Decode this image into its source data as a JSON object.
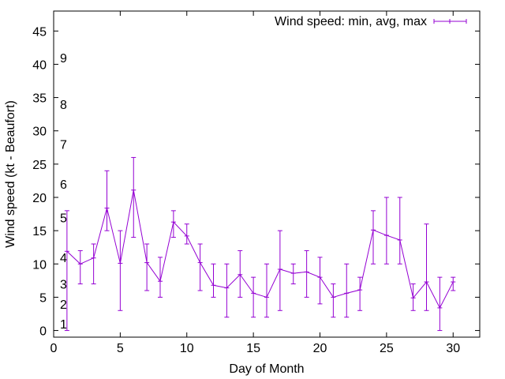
{
  "chart_data": {
    "type": "line",
    "xlabel": "Day of Month",
    "ylabel": "Wind speed (kt - Beaufort)",
    "xlim": [
      0,
      32
    ],
    "ylim": [
      -1,
      48
    ],
    "xticks": [
      0,
      5,
      10,
      15,
      20,
      25,
      30
    ],
    "yticks": [
      0,
      5,
      10,
      15,
      20,
      25,
      30,
      35,
      40,
      45
    ],
    "grid": false,
    "legend_position": "top-right",
    "series": [
      {
        "name": "Wind speed: min, avg, max",
        "color": "#9400d3",
        "style": "line-with-error-bars",
        "points": [
          {
            "x": 1,
            "y": 11.9,
            "min": 0,
            "max": 18
          },
          {
            "x": 2,
            "y": 10.0,
            "min": 7,
            "max": 12
          },
          {
            "x": 3,
            "y": 10.9,
            "min": 7,
            "max": 13
          },
          {
            "x": 4,
            "y": 18.4,
            "min": 15,
            "max": 24
          },
          {
            "x": 5,
            "y": 10.1,
            "min": 3,
            "max": 15
          },
          {
            "x": 6,
            "y": 21.1,
            "min": 14,
            "max": 26
          },
          {
            "x": 7,
            "y": 10.2,
            "min": 6,
            "max": 13
          },
          {
            "x": 8,
            "y": 7.4,
            "min": 5,
            "max": 11
          },
          {
            "x": 9,
            "y": 16.3,
            "min": 14,
            "max": 18
          },
          {
            "x": 10,
            "y": 14.2,
            "min": 13,
            "max": 16
          },
          {
            "x": 11,
            "y": 10.2,
            "min": 6,
            "max": 13
          },
          {
            "x": 12,
            "y": 6.8,
            "min": 5,
            "max": 10
          },
          {
            "x": 13,
            "y": 6.4,
            "min": 2,
            "max": 10
          },
          {
            "x": 14,
            "y": 8.4,
            "min": 5,
            "max": 12
          },
          {
            "x": 15,
            "y": 5.6,
            "min": 2,
            "max": 8
          },
          {
            "x": 16,
            "y": 5.0,
            "min": 2,
            "max": 10
          },
          {
            "x": 17,
            "y": 9.2,
            "min": 3,
            "max": 15
          },
          {
            "x": 18,
            "y": 8.6,
            "min": 7,
            "max": 10
          },
          {
            "x": 19,
            "y": 8.8,
            "min": 5,
            "max": 12
          },
          {
            "x": 20,
            "y": 8.0,
            "min": 4,
            "max": 11
          },
          {
            "x": 21,
            "y": 5.0,
            "min": 2,
            "max": 7
          },
          {
            "x": 22,
            "y": 5.6,
            "min": 2,
            "max": 10
          },
          {
            "x": 23,
            "y": 6.1,
            "min": 3,
            "max": 8
          },
          {
            "x": 24,
            "y": 15.1,
            "min": 10,
            "max": 18
          },
          {
            "x": 25,
            "y": 14.3,
            "min": 10,
            "max": 20
          },
          {
            "x": 26,
            "y": 13.6,
            "min": 10,
            "max": 20
          },
          {
            "x": 27,
            "y": 4.9,
            "min": 3,
            "max": 7
          },
          {
            "x": 28,
            "y": 7.3,
            "min": 3,
            "max": 16
          },
          {
            "x": 29,
            "y": 3.4,
            "min": 0,
            "max": 8
          },
          {
            "x": 30,
            "y": 7.3,
            "min": 6,
            "max": 8
          }
        ]
      }
    ],
    "beaufort_labels": [
      {
        "label": "1",
        "y": 1
      },
      {
        "label": "2",
        "y": 4
      },
      {
        "label": "3",
        "y": 7
      },
      {
        "label": "4",
        "y": 11
      },
      {
        "label": "5",
        "y": 17
      },
      {
        "label": "6",
        "y": 22
      },
      {
        "label": "7",
        "y": 28
      },
      {
        "label": "8",
        "y": 34
      },
      {
        "label": "9",
        "y": 41
      }
    ]
  }
}
